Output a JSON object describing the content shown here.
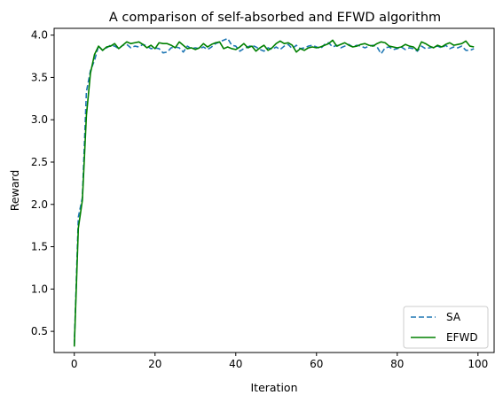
{
  "chart_data": {
    "type": "line",
    "title": "A comparison of self-absorbed and EFWD algorithm",
    "xlabel": "Iteration",
    "ylabel": "Reward",
    "xlim": [
      -5,
      104
    ],
    "ylim": [
      0.25,
      4.08
    ],
    "xticks": [
      0,
      20,
      40,
      60,
      80,
      100
    ],
    "yticks": [
      0.5,
      1.0,
      1.5,
      2.0,
      2.5,
      3.0,
      3.5,
      4.0
    ],
    "grid": false,
    "legend_position": "lower-right",
    "series": [
      {
        "name": "SA",
        "color": "#1f77b4",
        "dash": "dashed",
        "values": [
          0.34,
          1.85,
          2.08,
          3.33,
          3.58,
          3.7,
          3.87,
          3.82,
          3.85,
          3.88,
          3.87,
          3.84,
          3.88,
          3.89,
          3.85,
          3.87,
          3.86,
          3.89,
          3.87,
          3.84,
          3.85,
          3.84,
          3.79,
          3.8,
          3.85,
          3.86,
          3.85,
          3.8,
          3.87,
          3.84,
          3.85,
          3.84,
          3.86,
          3.83,
          3.86,
          3.9,
          3.92,
          3.94,
          3.96,
          3.88,
          3.87,
          3.81,
          3.84,
          3.86,
          3.88,
          3.86,
          3.83,
          3.81,
          3.85,
          3.83,
          3.86,
          3.83,
          3.87,
          3.89,
          3.84,
          3.88,
          3.84,
          3.85,
          3.87,
          3.88,
          3.86,
          3.84,
          3.89,
          3.91,
          3.86,
          3.88,
          3.85,
          3.87,
          3.89,
          3.86,
          3.88,
          3.87,
          3.85,
          3.87,
          3.88,
          3.86,
          3.78,
          3.85,
          3.86,
          3.83,
          3.84,
          3.86,
          3.83,
          3.85,
          3.84,
          3.81,
          3.87,
          3.84,
          3.85,
          3.86,
          3.87,
          3.85,
          3.88,
          3.84,
          3.86,
          3.85,
          3.87,
          3.82,
          3.82,
          3.84
        ]
      },
      {
        "name": "EFWD",
        "color": "#008000",
        "dash": "solid",
        "values": [
          0.32,
          1.72,
          2.05,
          3.05,
          3.55,
          3.77,
          3.87,
          3.82,
          3.86,
          3.87,
          3.9,
          3.84,
          3.88,
          3.92,
          3.9,
          3.91,
          3.92,
          3.89,
          3.85,
          3.88,
          3.84,
          3.91,
          3.9,
          3.9,
          3.88,
          3.85,
          3.92,
          3.88,
          3.84,
          3.85,
          3.83,
          3.85,
          3.9,
          3.86,
          3.89,
          3.91,
          3.92,
          3.84,
          3.86,
          3.84,
          3.83,
          3.86,
          3.9,
          3.85,
          3.87,
          3.81,
          3.85,
          3.88,
          3.82,
          3.85,
          3.9,
          3.93,
          3.9,
          3.91,
          3.88,
          3.8,
          3.84,
          3.82,
          3.85,
          3.86,
          3.85,
          3.86,
          3.88,
          3.9,
          3.94,
          3.87,
          3.89,
          3.91,
          3.88,
          3.86,
          3.87,
          3.89,
          3.9,
          3.88,
          3.87,
          3.9,
          3.92,
          3.91,
          3.87,
          3.86,
          3.85,
          3.86,
          3.89,
          3.87,
          3.86,
          3.82,
          3.92,
          3.9,
          3.87,
          3.85,
          3.88,
          3.86,
          3.89,
          3.91,
          3.88,
          3.89,
          3.9,
          3.93,
          3.87,
          3.86
        ]
      }
    ]
  }
}
